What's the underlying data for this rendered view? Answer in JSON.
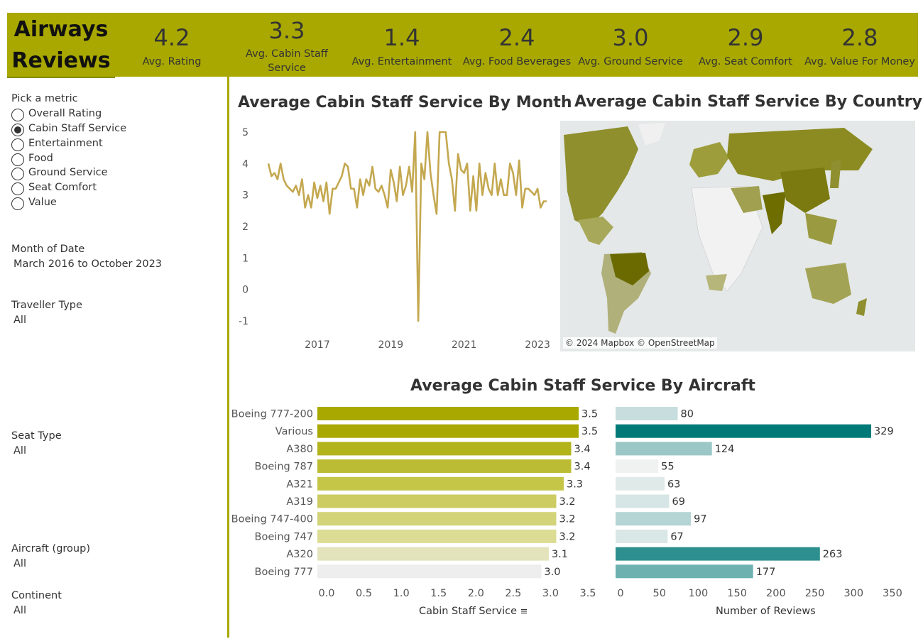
{
  "brand": {
    "line1": "Airways",
    "line2": "Reviews"
  },
  "kpis": [
    {
      "value": "4.2",
      "label": "Avg. Rating"
    },
    {
      "value": "3.3",
      "label1": "Avg. Cabin Staff",
      "label2": "Service"
    },
    {
      "value": "1.4",
      "label": "Avg. Entertainment"
    },
    {
      "value": "2.4",
      "label": "Avg. Food Beverages"
    },
    {
      "value": "3.0",
      "label": "Avg. Ground Service"
    },
    {
      "value": "2.9",
      "label": "Avg. Seat Comfort"
    },
    {
      "value": "2.8",
      "label": "Avg. Value For Money"
    }
  ],
  "sidebar": {
    "metric_title": "Pick a metric",
    "metrics": [
      "Overall Rating",
      "Cabin Staff Service",
      "Entertainment",
      "Food",
      "Ground Service",
      "Seat Comfort",
      "Value"
    ],
    "selected_metric": "Cabin Staff Service",
    "filters": [
      {
        "label": "Month of Date",
        "value": "March 2016 to October 2023"
      },
      {
        "label": "Traveller Type",
        "value": "All"
      },
      {
        "label": "Seat Type",
        "value": "All"
      },
      {
        "label": "Aircraft (group)",
        "value": "All"
      },
      {
        "label": "Continent",
        "value": "All"
      }
    ]
  },
  "titles": {
    "month": "Average Cabin Staff Service By Month",
    "country": "Average Cabin Staff Service By Country",
    "aircraft": "Average Cabin Staff Service By Aircraft"
  },
  "map": {
    "credit": "© 2024 Mapbox © OpenStreetMap"
  },
  "colors": {
    "olive": "#a8a800",
    "line": "#c4a850",
    "teal": "#007a78"
  },
  "chart_data": [
    {
      "type": "line",
      "title": "Average Cabin Staff Service By Month",
      "x_ticks": [
        "2017",
        "2019",
        "2021",
        "2023"
      ],
      "y_ticks": [
        5,
        4,
        3,
        2,
        1,
        0,
        -1
      ],
      "ylim": [
        -1,
        5
      ],
      "xlim": [
        "2016-03",
        "2023-10"
      ],
      "x": [
        "2016-03",
        "2016-04",
        "2016-05",
        "2016-06",
        "2016-07",
        "2016-08",
        "2016-09",
        "2016-10",
        "2016-11",
        "2016-12",
        "2017-01",
        "2017-02",
        "2017-03",
        "2017-04",
        "2017-05",
        "2017-06",
        "2017-07",
        "2017-08",
        "2017-09",
        "2017-10",
        "2017-11",
        "2017-12",
        "2018-01",
        "2018-02",
        "2018-03",
        "2018-04",
        "2018-05",
        "2018-06",
        "2018-07",
        "2018-08",
        "2018-09",
        "2018-10",
        "2018-11",
        "2018-12",
        "2019-01",
        "2019-02",
        "2019-03",
        "2019-04",
        "2019-05",
        "2019-06",
        "2019-07",
        "2019-08",
        "2019-09",
        "2019-10",
        "2019-11",
        "2019-12",
        "2020-01",
        "2020-02",
        "2020-03",
        "2020-04",
        "2020-05",
        "2020-06",
        "2020-07",
        "2020-08",
        "2020-09",
        "2020-10",
        "2020-11",
        "2020-12",
        "2021-01",
        "2021-02",
        "2021-03",
        "2021-04",
        "2021-05",
        "2021-06",
        "2021-07",
        "2021-08",
        "2021-09",
        "2021-10",
        "2021-11",
        "2021-12",
        "2022-01",
        "2022-02",
        "2022-03",
        "2022-04",
        "2022-05",
        "2022-06",
        "2022-07",
        "2022-08",
        "2022-09",
        "2022-10",
        "2022-11",
        "2022-12",
        "2023-01",
        "2023-02",
        "2023-03",
        "2023-04",
        "2023-05",
        "2023-06",
        "2023-07",
        "2023-08",
        "2023-09",
        "2023-10"
      ],
      "values": [
        4.0,
        3.6,
        3.7,
        3.5,
        4.0,
        3.5,
        3.3,
        3.2,
        3.1,
        3.3,
        3.0,
        3.5,
        2.6,
        3.0,
        2.6,
        3.4,
        2.9,
        3.3,
        2.8,
        3.4,
        2.4,
        3.2,
        3.2,
        3.4,
        3.6,
        4.0,
        3.9,
        3.2,
        3.2,
        2.6,
        3.5,
        3.0,
        3.5,
        3.3,
        3.9,
        3.2,
        3.1,
        3.3,
        3.0,
        2.6,
        3.8,
        3.4,
        2.8,
        3.9,
        3.0,
        3.3,
        3.9,
        3.1,
        5.0,
        -1.0,
        4.0,
        3.5,
        5.0,
        3.7,
        3.0,
        2.4,
        5.0,
        5.0,
        5.0,
        4.0,
        3.5,
        2.5,
        4.3,
        3.8,
        3.7,
        4.0,
        2.5,
        3.6,
        2.5,
        4.0,
        3.0,
        3.7,
        3.2,
        3.0,
        4.0,
        3.0,
        3.5,
        3.0,
        3.0,
        4.0,
        3.7,
        3.0,
        4.1,
        2.6,
        3.2,
        3.2,
        3.1,
        3.0,
        3.2,
        2.6,
        2.8,
        2.8
      ]
    },
    {
      "type": "bar",
      "title": "Average Cabin Staff Service By Aircraft",
      "xlabel": "Cabin Staff Service",
      "categories": [
        "Boeing 777-200",
        "Various",
        "A380",
        "Boeing 787",
        "A321",
        "A319",
        "Boeing 747-400",
        "Boeing 747",
        "A320",
        "Boeing 777"
      ],
      "values": [
        3.5,
        3.5,
        3.4,
        3.4,
        3.3,
        3.2,
        3.2,
        3.2,
        3.1,
        3.0
      ],
      "xlim": [
        0,
        3.5
      ],
      "x_ticks": [
        "0.0",
        "0.5",
        "1.0",
        "1.5",
        "2.0",
        "2.5",
        "3.0",
        "3.5"
      ]
    },
    {
      "type": "bar",
      "xlabel": "Number of Reviews",
      "categories": [
        "Boeing 777-200",
        "Various",
        "A380",
        "Boeing 787",
        "A321",
        "A319",
        "Boeing 747-400",
        "Boeing 747",
        "A320",
        "Boeing 777"
      ],
      "values": [
        80,
        329,
        124,
        55,
        63,
        69,
        97,
        67,
        263,
        177
      ],
      "xlim": [
        0,
        350
      ],
      "x_ticks": [
        "0",
        "50",
        "100",
        "150",
        "200",
        "250",
        "300",
        "350"
      ]
    }
  ]
}
